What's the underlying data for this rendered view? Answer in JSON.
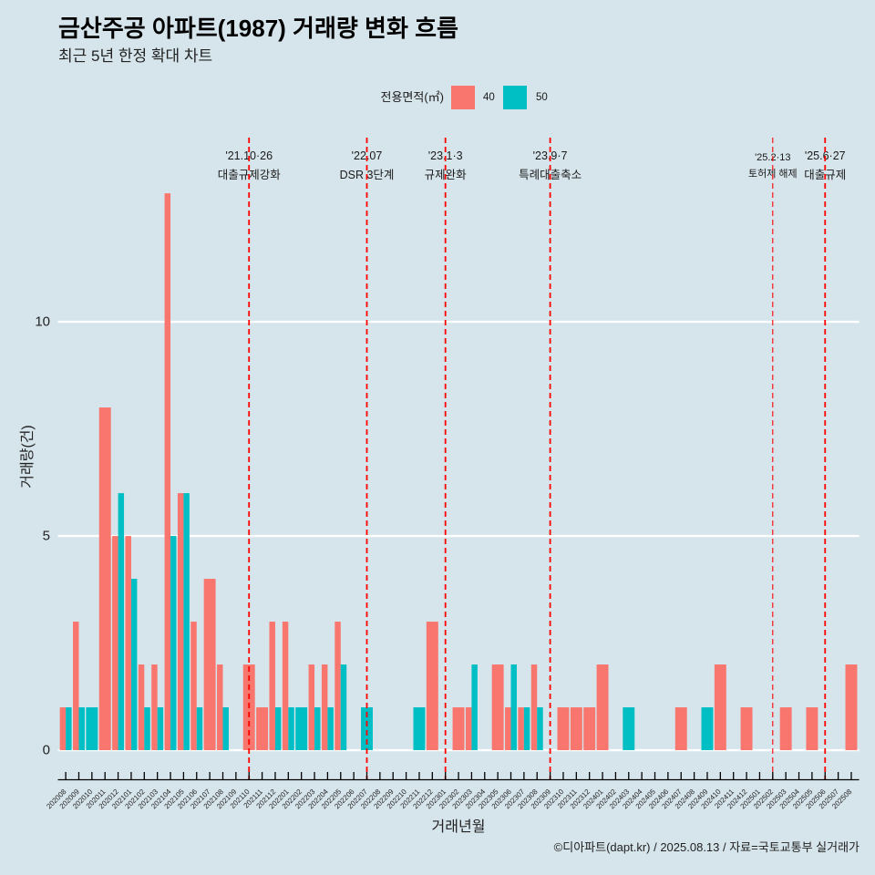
{
  "header": {
    "title": "금산주공 아파트(1987) 거래량 변화 흐름",
    "subtitle": "최근 5년 한정 확대 차트"
  },
  "legend": {
    "title": "전용면적(㎡)",
    "items": [
      {
        "label": "40",
        "color": "#F8766D"
      },
      {
        "label": "50",
        "color": "#00BFC4"
      }
    ]
  },
  "axes": {
    "xlabel": "거래년월",
    "ylabel": "거래량(건)"
  },
  "caption": "©디아파트(dapt.kr) / 2025.08.13 / 자료=국토교통부 실거래가",
  "colors": {
    "background": "#D6E4EB",
    "gridline": "#FFFFFF",
    "event_line": "#FF0000",
    "text": "#1A1A1A"
  },
  "chart_data": {
    "type": "bar",
    "bar_mode": "dodge",
    "title": "금산주공 아파트(1987) 거래량 변화 흐름",
    "subtitle": "최근 5년 한정 확대 차트",
    "xlabel": "거래년월",
    "ylabel": "거래량(건)",
    "ylim": [
      -0.68,
      14.3
    ],
    "yticks": [
      0,
      5,
      10
    ],
    "grid": "horizontal-major",
    "legend": {
      "title": "전용면적(㎡)",
      "position": "top"
    },
    "categories": [
      "202008",
      "202009",
      "202010",
      "202011",
      "202012",
      "202101",
      "202102",
      "202103",
      "202104",
      "202105",
      "202106",
      "202107",
      "202108",
      "202109",
      "202110",
      "202111",
      "202112",
      "202201",
      "202202",
      "202203",
      "202204",
      "202205",
      "202206",
      "202207",
      "202208",
      "202209",
      "202210",
      "202211",
      "202212",
      "202301",
      "202302",
      "202303",
      "202304",
      "202305",
      "202306",
      "202307",
      "202308",
      "202309",
      "202310",
      "202311",
      "202312",
      "202401",
      "202402",
      "202403",
      "202404",
      "202405",
      "202406",
      "202407",
      "202408",
      "202409",
      "202410",
      "202411",
      "202412",
      "202501",
      "202502",
      "202503",
      "202504",
      "202505",
      "202506",
      "202507",
      "202508"
    ],
    "series": [
      {
        "name": "40",
        "color": "#F8766D",
        "values": [
          1,
          3,
          null,
          8,
          5,
          5,
          2,
          2,
          13,
          6,
          3,
          4,
          2,
          null,
          2,
          1,
          3,
          3,
          null,
          2,
          2,
          3,
          null,
          null,
          null,
          null,
          null,
          null,
          3,
          null,
          1,
          1,
          null,
          2,
          1,
          1,
          2,
          null,
          1,
          1,
          1,
          2,
          null,
          null,
          null,
          null,
          null,
          1,
          null,
          null,
          2,
          null,
          1,
          null,
          null,
          1,
          null,
          1,
          null,
          null,
          2
        ]
      },
      {
        "name": "50",
        "color": "#00BFC4",
        "values": [
          1,
          1,
          1,
          null,
          6,
          4,
          1,
          1,
          5,
          6,
          1,
          null,
          1,
          null,
          null,
          null,
          1,
          1,
          1,
          1,
          1,
          2,
          null,
          1,
          null,
          null,
          null,
          1,
          null,
          null,
          null,
          2,
          null,
          null,
          2,
          1,
          1,
          null,
          null,
          null,
          null,
          null,
          null,
          1,
          null,
          null,
          null,
          null,
          null,
          1,
          null,
          null,
          null,
          null,
          null,
          null,
          null,
          null,
          null,
          null,
          null
        ]
      }
    ],
    "annotations": [
      {
        "x": "202110",
        "date": "'21.10·26",
        "label": "대출규제강화",
        "style": "major"
      },
      {
        "x": "202207",
        "date": "'22.07",
        "label": "DSR 3단계",
        "style": "major"
      },
      {
        "x": "202301",
        "date": "'23.1·3",
        "label": "규제완화",
        "style": "major"
      },
      {
        "x": "202309",
        "date": "'23.9·7",
        "label": "특례대출축소",
        "style": "major"
      },
      {
        "x": "202502",
        "date": "'25.2·13",
        "label": "토허제 해제",
        "style": "minor"
      },
      {
        "x": "202506",
        "date": "'25.6·27",
        "label": "대출규제",
        "style": "major"
      }
    ],
    "caption": "©디아파트(dapt.kr) / 2025.08.13 / 자료=국토교통부 실거래가"
  }
}
